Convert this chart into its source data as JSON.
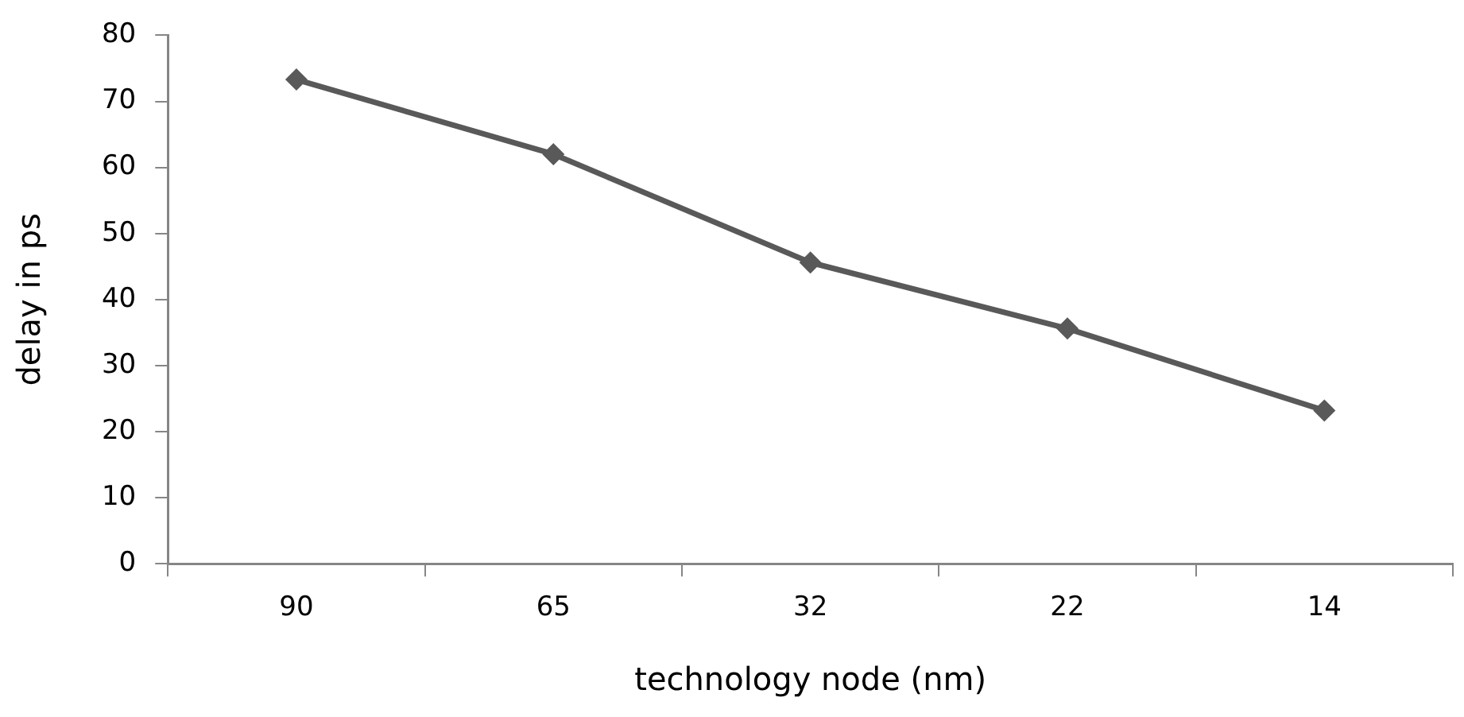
{
  "chart_data": {
    "type": "line",
    "xlabel": "technology node (nm)",
    "ylabel": "delay in ps",
    "categories": [
      "90",
      "65",
      "32",
      "22",
      "14"
    ],
    "series": [
      {
        "color": "#595959",
        "values": [
          73.3,
          62,
          45.6,
          35.6,
          23.2
        ]
      }
    ],
    "ylim": [
      0,
      80
    ],
    "yticks": [
      0,
      10,
      20,
      30,
      40,
      50,
      60,
      70,
      80
    ],
    "grid": false,
    "legend": false,
    "marker": "diamond",
    "line_style": "solid"
  }
}
